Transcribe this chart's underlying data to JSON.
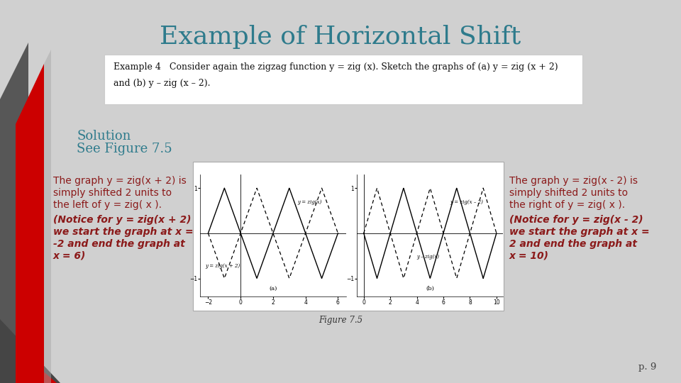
{
  "title": "Example of Horizontal Shift",
  "title_color": "#2e7b8c",
  "title_fontsize": 26,
  "bg_color": "#d0d0d0",
  "example_box_text_line1": "Example 4   Consider again the zigzag function y = zig (x). Sketch the graphs of (a) y = zig (x + 2)",
  "example_box_text_line2": "and (b) y – zig (x – 2).",
  "solution_color": "#2e7b8c",
  "left_text_regular": [
    "The graph y = zig(x + 2) is",
    "simply shifted 2 units to",
    "the left of y = zig( x )."
  ],
  "left_text_bold": [
    "(Notice for y = zig(x + 2)",
    "we start the graph at x =",
    "-2 and end the graph at",
    "x = 6)"
  ],
  "right_text_regular": [
    "The graph y = zig(x - 2) is",
    "simply shifted 2 units to",
    "the right of y = zig( x )."
  ],
  "right_text_bold": [
    "(Notice for y = zig(x - 2)",
    "we start the graph at x =",
    "2 and end the graph at",
    "x = 10)"
  ],
  "text_color": "#8b1a1a",
  "page_num": "p. 9",
  "fig_caption": "Figure 7.5",
  "red_bar_color": "#cc0000",
  "gray_bar_color": "#555555"
}
